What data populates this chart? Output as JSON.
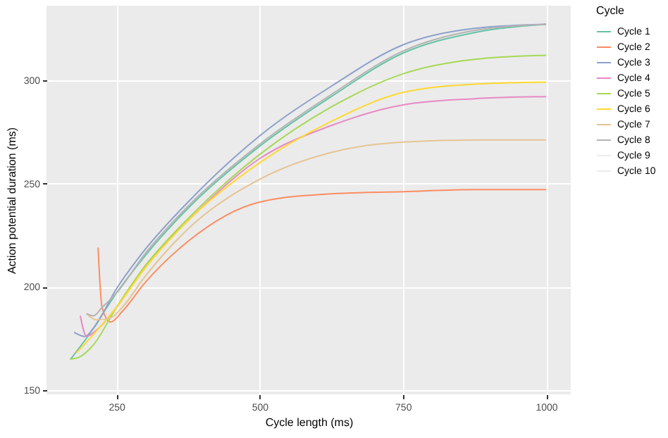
{
  "chart_data": {
    "type": "line",
    "xlabel": "Cycle length (ms)",
    "ylabel": "Action potential duration (ms)",
    "legend_title": "Cycle",
    "legend": "right",
    "grid": true,
    "xlim": [
      128,
      1043
    ],
    "ylim": [
      148,
      336
    ],
    "xticks": [
      250,
      500,
      750,
      1000
    ],
    "yticks": [
      150,
      200,
      250,
      300
    ],
    "series": [
      {
        "name": "Cycle 1",
        "color": "#66c2a5",
        "x": [
          170,
          200,
          250,
          300,
          375,
          500,
          625,
          750,
          875,
          1000
        ],
        "values": [
          165,
          176,
          197,
          215,
          238,
          268,
          292,
          313,
          323,
          327
        ]
      },
      {
        "name": "Cycle 2",
        "color": "#fc8d62",
        "x": [
          218,
          225,
          240,
          260,
          300,
          375,
          500,
          625,
          750,
          875,
          1000
        ],
        "values": [
          219,
          190,
          183,
          188,
          202,
          222,
          241,
          245,
          246,
          247,
          247
        ]
      },
      {
        "name": "Cycle 3",
        "color": "#8da0cb",
        "x": [
          176,
          195,
          210,
          250,
          300,
          375,
          500,
          625,
          750,
          875,
          1000
        ],
        "values": [
          178,
          176,
          180,
          199,
          218,
          241,
          273,
          297,
          317,
          325,
          327
        ]
      },
      {
        "name": "Cycle 4",
        "color": "#e78ac3",
        "x": [
          187,
          198,
          215,
          250,
          300,
          375,
          500,
          625,
          750,
          875,
          1000
        ],
        "values": [
          186,
          176,
          179,
          190,
          210,
          232,
          262,
          278,
          288,
          291,
          292
        ]
      },
      {
        "name": "Cycle 5",
        "color": "#a6d854",
        "x": [
          169,
          185,
          210,
          250,
          300,
          375,
          500,
          625,
          750,
          875,
          1000
        ],
        "values": [
          165,
          166,
          172,
          190,
          210,
          233,
          264,
          287,
          303,
          310,
          312
        ]
      },
      {
        "name": "Cycle 6",
        "color": "#ffd92f",
        "x": [
          180,
          210,
          250,
          300,
          375,
          500,
          625,
          750,
          875,
          1000
        ],
        "values": [
          168,
          177,
          190,
          209,
          232,
          260,
          280,
          294,
          298,
          299
        ]
      },
      {
        "name": "Cycle 7",
        "color": "#e5c494",
        "x": [
          198,
          215,
          240,
          260,
          300,
          375,
          500,
          625,
          750,
          875,
          1000
        ],
        "values": [
          187,
          184,
          185,
          190,
          205,
          228,
          252,
          265,
          270,
          271,
          271
        ]
      },
      {
        "name": "Cycle 8",
        "color": "#b3b3b3",
        "x": [
          198,
          210,
          225,
          250,
          300,
          375,
          500,
          625,
          750,
          875,
          1000
        ],
        "values": [
          187,
          186,
          190,
          197,
          216,
          239,
          269,
          293,
          314,
          324,
          327
        ]
      },
      {
        "name": "Cycle 9",
        "color": "#ebebeb"
      },
      {
        "name": "Cycle 10",
        "color": "#ebebeb"
      }
    ]
  }
}
